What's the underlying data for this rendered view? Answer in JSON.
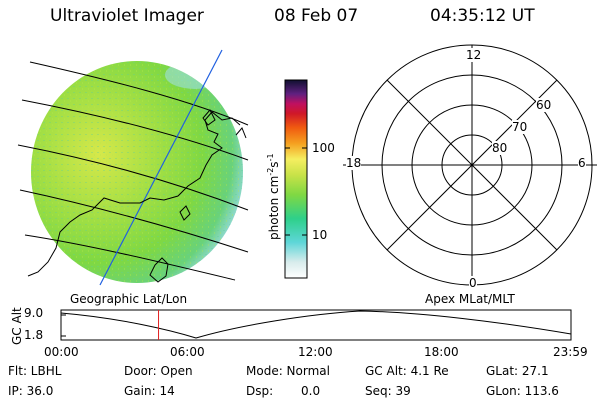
{
  "header": {
    "instrument": "Ultraviolet Imager",
    "date": "08 Feb 07",
    "time": "04:35:12 UT"
  },
  "colorbar": {
    "unit_label": "photon cm",
    "unit_exp1": "-2",
    "unit_s": "s",
    "unit_exp2": "-1",
    "ticks": [
      "100",
      "10"
    ]
  },
  "left_panel": {
    "label": "Geographic Lat/Lon"
  },
  "right_panel": {
    "label": "Apex MLat/MLT",
    "mlt_labels": {
      "top": "12",
      "left": "18",
      "right": "6",
      "bottom": "0"
    },
    "lat_labels": [
      "60",
      "70",
      "80"
    ]
  },
  "altitude_plot": {
    "ylabel": "GC Alt",
    "yticks": [
      "9.0",
      "1.8"
    ],
    "xticks": [
      "00:00",
      "06:00",
      "12:00",
      "18:00",
      "23:59"
    ],
    "marker_time_hours": 4.59
  },
  "status": {
    "flt": "Flt: LBHL",
    "ip": "IP: 36.0",
    "door": "Door: Open",
    "gain": "Gain: 14",
    "mode": "Mode: Normal",
    "dsp_label": "Dsp:",
    "dsp_value": "0.0",
    "gc_alt": "GC Alt: 4.1 Re",
    "seq": "Seq: 39",
    "glat": "GLat:  27.1",
    "glon": "GLon: 113.6"
  },
  "colors": {
    "image_green": "#7fd843",
    "image_yellow": "#d8e84a",
    "image_cyan": "#6fd8c8",
    "marker_red": "#e02020",
    "meridian_blue": "#2060e0"
  }
}
